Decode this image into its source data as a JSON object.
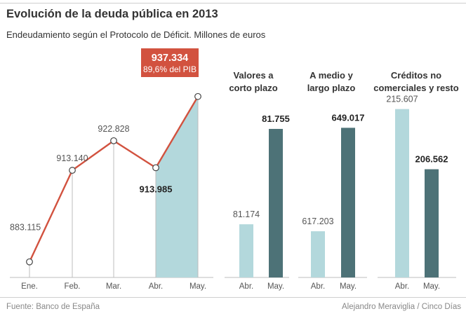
{
  "header": {
    "title": "Evolución de la deuda pública en 2013",
    "subtitle": "Endeudamiento según el Protocolo de Déficit. Millones de euros"
  },
  "footer": {
    "source": "Fuente: Banco de España",
    "credit": "Alejandro Meraviglia / Cinco Días"
  },
  "colors": {
    "line": "#d2523f",
    "area": "#b3d8dc",
    "bar_light": "#b3d8dc",
    "bar_dark": "#4d7277",
    "callout": "#d2523f",
    "axis": "#bdbdbd"
  },
  "chart_data": [
    {
      "type": "line",
      "title": "Evolución de la deuda pública en 2013",
      "categories": [
        "Ene.",
        "Feb.",
        "Mar.",
        "Abr.",
        "May."
      ],
      "values": [
        883115,
        913140,
        922828,
        913985,
        937334
      ],
      "labels": [
        "883.115",
        "913.140",
        "922.828",
        "913.985",
        "937.334"
      ],
      "highlight": {
        "from": "Abr.",
        "to": "May."
      },
      "callout": {
        "value": "937.334",
        "note": "89,6% del PIB"
      },
      "ylim": [
        878000,
        946000
      ]
    },
    {
      "type": "bar",
      "title": "Valores a corto plazo",
      "title_lines": [
        "Valores a",
        "corto plazo"
      ],
      "categories": [
        "Abr.",
        "May."
      ],
      "values": [
        81174,
        81755
      ],
      "labels": [
        "81.174",
        "81.755"
      ],
      "ymin": 80850,
      "ymax": 81900
    },
    {
      "type": "bar",
      "title": "A medio y largo plazo",
      "title_lines": [
        "A medio y",
        "largo plazo"
      ],
      "categories": [
        "Abr.",
        "May."
      ],
      "values": [
        617203,
        649017
      ],
      "labels": [
        "617.203",
        "649.017"
      ],
      "ymin": 603000,
      "ymax": 656000
    },
    {
      "type": "bar",
      "title": "Créditos no comerciales y resto",
      "title_lines": [
        "Créditos no",
        "comerciales y resto"
      ],
      "categories": [
        "Abr.",
        "May."
      ],
      "values": [
        215607,
        206562
      ],
      "labels": [
        "215.607",
        "206.562"
      ],
      "ymin": 190300,
      "ymax": 216200
    }
  ]
}
